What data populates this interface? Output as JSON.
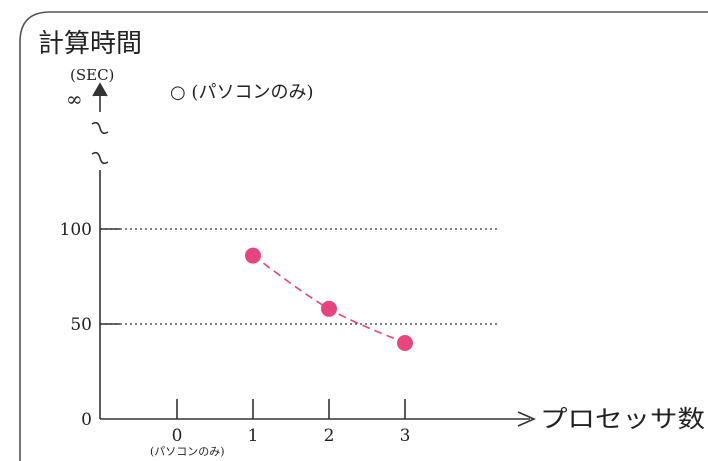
{
  "chart_data": {
    "type": "scatter",
    "title": "",
    "ylabel": "計算時間",
    "yunit": "(SEC)",
    "xlabel": "プロセッサ数",
    "x_ticks": [
      "0",
      "1",
      "2",
      "3"
    ],
    "x_tick_note": "(パソコンのみ)",
    "y_ticks": [
      "0",
      "50",
      "100"
    ],
    "y_infinity_label": "∞",
    "y_break": true,
    "ylim": [
      0,
      100
    ],
    "reference_lines": [
      50,
      100
    ],
    "grid": false,
    "annotation": "○ (パソコンのみ)",
    "series": [
      {
        "x": [
          1,
          2,
          3
        ],
        "y": [
          86,
          58,
          40
        ],
        "color": "#e8447f",
        "trend_line": "dashed"
      }
    ]
  }
}
